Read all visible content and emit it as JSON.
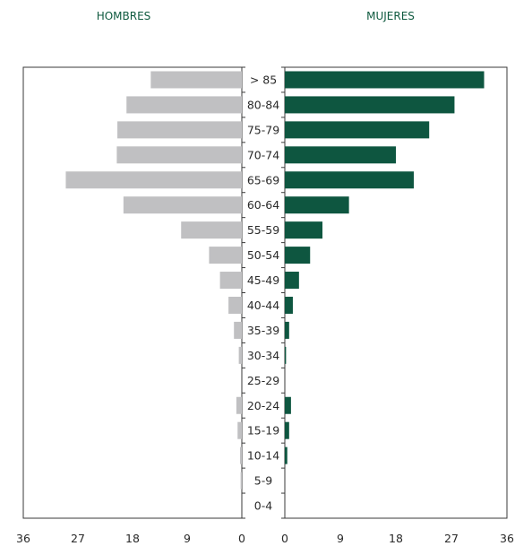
{
  "chart_data": {
    "type": "bar",
    "orientation": "horizontal",
    "layout": "population-pyramid",
    "categories": [
      "> 85",
      "80-84",
      "75-79",
      "70-74",
      "65-69",
      "60-64",
      "55-59",
      "50-54",
      "45-49",
      "40-44",
      "35-39",
      "30-34",
      "25-29",
      "20-24",
      "15-19",
      "10-14",
      "5-9",
      "0-4"
    ],
    "series": [
      {
        "name": "HOMBRES",
        "side": "left",
        "color": "#c0c0c2",
        "values": [
          15,
          19,
          20.5,
          20.6,
          29,
          19.5,
          10,
          5.4,
          3.6,
          2.2,
          1.3,
          0.5,
          0,
          0.9,
          0.7,
          0.3,
          0.2,
          0
        ]
      },
      {
        "name": "MUJERES",
        "side": "right",
        "color": "#0e5640",
        "values": [
          32.3,
          27.5,
          23.4,
          18,
          20.9,
          10.4,
          6.1,
          4.1,
          2.3,
          1.3,
          0.7,
          0.2,
          0,
          1,
          0.7,
          0.4,
          0,
          0
        ]
      }
    ],
    "xlim": [
      0,
      36
    ],
    "ticks": [
      "36",
      "27",
      "18",
      "9",
      "0",
      "0",
      "9",
      "18",
      "27",
      "36"
    ],
    "grid": false,
    "header_color": "#0f5a3f",
    "axis_color": "#3a3a3a"
  }
}
